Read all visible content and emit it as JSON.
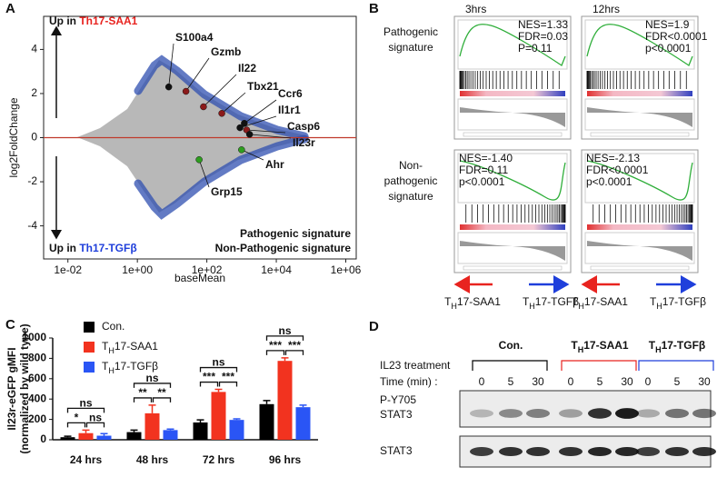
{
  "panel_labels": [
    "A",
    "B",
    "C",
    "D"
  ],
  "chart_data": [
    {
      "type": "scatter",
      "ylabel": "log2FoldChange",
      "xlabel": "baseMean",
      "log_x": true,
      "xlim": [
        0.002,
        2000000
      ],
      "xticks": [
        {
          "value": 0.01,
          "label": "1e-02"
        },
        {
          "value": 1,
          "label": "1e+00"
        },
        {
          "value": 100,
          "label": "1e+02"
        },
        {
          "value": 10000,
          "label": "1e+04"
        },
        {
          "value": 1000000,
          "label": "1e+06"
        }
      ],
      "ylim": [
        -5.5,
        5.5
      ],
      "yticks": [
        -4,
        -2,
        0,
        2,
        4
      ],
      "hline": 0,
      "hline_color": "#c0392b",
      "up_prefix": "Up in",
      "up_label": "Th17-SAA1",
      "up_color": "#e8231f",
      "down_prefix": "Up in",
      "down_label": "Th17-TGFβ",
      "down_color": "#1f3fdb",
      "genes": [
        {
          "label": "S100a4",
          "x": 8,
          "y": 2.3,
          "color": "#111111"
        },
        {
          "label": "Gzmb",
          "x": 25,
          "y": 2.1,
          "color": "#8b1a1a"
        },
        {
          "label": "Il22",
          "x": 80,
          "y": 1.4,
          "color": "#8b1a1a"
        },
        {
          "label": "Tbx21",
          "x": 270,
          "y": 1.1,
          "color": "#8b1a1a"
        },
        {
          "label": "Ccr6",
          "x": 1200,
          "y": 0.65,
          "color": "#111111"
        },
        {
          "label": "Il1r1",
          "x": 900,
          "y": 0.45,
          "color": "#111111"
        },
        {
          "label": "Casp6",
          "x": 1400,
          "y": 0.35,
          "color": "#8b1a1a"
        },
        {
          "label": "Il23r",
          "x": 1700,
          "y": 0.15,
          "color": "#111111"
        },
        {
          "label": "Ahr",
          "x": 1000,
          "y": -0.55,
          "color": "#2e9e1f"
        },
        {
          "label": "Grp15",
          "x": 60,
          "y": -1.0,
          "color": "#2e9e1f"
        }
      ],
      "legend": [
        {
          "text": "Pathogenic signature",
          "color": "#8b1a1a"
        },
        {
          "text": "Non-Pathogenic signature",
          "color": "#2e9e1f"
        }
      ]
    },
    {
      "type": "bar",
      "ylabel": [
        "Il23r-eGFP gMFI",
        "(normalized by wild type)"
      ],
      "categories": [
        "24 hrs",
        "48 hrs",
        "72 hrs",
        "96 hrs"
      ],
      "ylim": [
        0,
        1000
      ],
      "yticks": [
        0,
        200,
        400,
        600,
        800,
        1000
      ],
      "series": [
        {
          "name": "Con.",
          "color": "#000000",
          "values": [
            25,
            75,
            170,
            350
          ],
          "errors": [
            10,
            20,
            25,
            35
          ]
        },
        {
          "name": "TH17-SAA1",
          "color": "#f2331f",
          "values": [
            65,
            260,
            470,
            775
          ],
          "errors": [
            30,
            80,
            25,
            30
          ]
        },
        {
          "name": "TH17-TGFβ",
          "color": "#2a55f5",
          "values": [
            40,
            95,
            195,
            320
          ],
          "errors": [
            20,
            10,
            10,
            20
          ]
        }
      ],
      "annotations": [
        [
          "ns",
          "*",
          "ns"
        ],
        [
          "ns",
          "**",
          "**"
        ],
        [
          "ns",
          "***",
          "***"
        ],
        [
          "ns",
          "***",
          "***"
        ]
      ]
    }
  ],
  "gsea": {
    "columns": [
      "3hrs",
      "12hrs"
    ],
    "rows": [
      {
        "label": [
          "Pathogenic",
          "signature"
        ],
        "color": "#c0392b"
      },
      {
        "label": [
          "Non-",
          "pathogenic",
          "signature"
        ],
        "color": "#3a9a2a"
      }
    ],
    "stats": [
      [
        [
          "NES=1.33",
          "FDR=0.03",
          "P=0.11"
        ],
        [
          "NES=1.9",
          "FDR<0.0001",
          "p<0.0001"
        ]
      ],
      [
        [
          "NES=-1.40",
          "FDR=0.11",
          "p<0.0001"
        ],
        [
          "NES=-2.13",
          "FDR<0.0001",
          "p<0.0001"
        ]
      ]
    ],
    "arrows": [
      {
        "text": "TH17-SAA1",
        "color": "#e8231f"
      },
      {
        "text": "TH17-TGFβ",
        "color": "#1f3fdb"
      }
    ]
  },
  "western": {
    "groups": [
      {
        "text": "Con.",
        "color": "#000000"
      },
      {
        "text": "TH17-SAA1",
        "color": "#e8231f"
      },
      {
        "text": "TH17-TGFβ",
        "color": "#1f3fdb"
      }
    ],
    "treatment": "IL23 treatment",
    "time_label": "Time (min) :",
    "times": [
      0,
      5,
      30
    ],
    "blots": [
      {
        "label": [
          "P-Y705",
          "STAT3"
        ]
      },
      {
        "label": [
          "STAT3"
        ]
      }
    ]
  }
}
